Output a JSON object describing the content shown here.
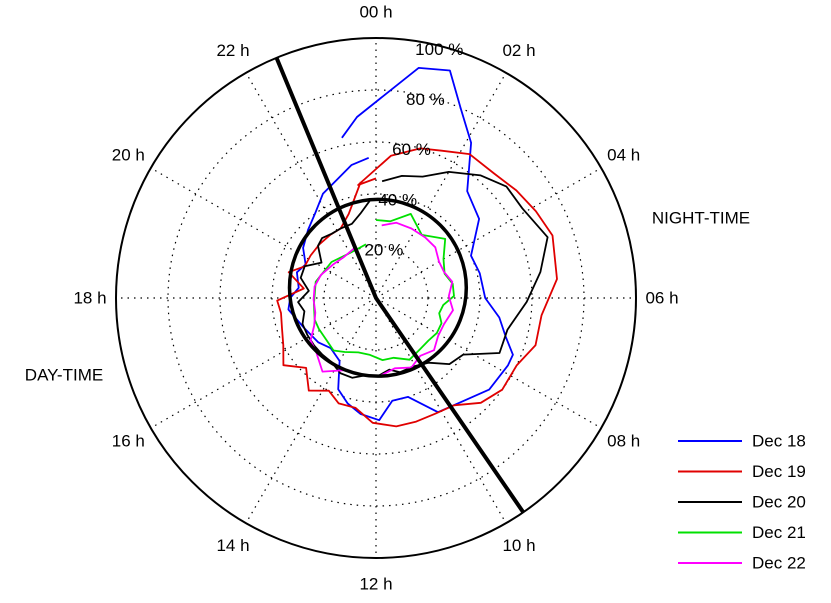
{
  "chart_data": {
    "type": "polar-line",
    "title": "",
    "theta_unit": "hour",
    "hour_labels": [
      "00 h",
      "02 h",
      "04 h",
      "06 h",
      "08 h",
      "10 h",
      "12 h",
      "14 h",
      "16 h",
      "18 h",
      "20 h",
      "22 h"
    ],
    "radial_labels": [
      "20 %",
      "40 %",
      "60 %",
      "80 %",
      "100 %"
    ],
    "rlim": [
      0,
      100
    ],
    "grid": true,
    "annotations": [
      {
        "name": "night",
        "text": "NIGHT-TIME"
      },
      {
        "name": "day",
        "text": "DAY-TIME"
      }
    ],
    "terminator_line": {
      "hours": [
        22.5,
        9.7
      ]
    },
    "mean_circle": {
      "value": 34,
      "hour_offset": 0.7,
      "center_value": 4
    },
    "legend_position": "bottom-right",
    "series": [
      {
        "name": "Dec 18",
        "color": "#0000ff",
        "r": [
          63,
          70,
          90,
          92,
          80,
          70,
          54,
          50,
          40,
          41,
          42,
          48,
          52,
          57,
          57,
          56,
          52,
          50,
          40,
          40,
          47,
          45,
          42,
          38,
          28,
          26,
          28,
          30,
          34,
          33,
          30,
          32,
          30,
          34,
          37,
          40,
          45,
          48,
          52,
          54
        ],
        "h": [
          -0.8,
          -0.4,
          0.7,
          1.2,
          1.6,
          2.1,
          2.7,
          3.5,
          4.4,
          5.1,
          6.0,
          6.6,
          7.1,
          7.5,
          7.8,
          8.6,
          9.3,
          10.1,
          10.8,
          11.4,
          11.9,
          12.5,
          13.0,
          13.5,
          14.0,
          14.8,
          15.5,
          16.5,
          17.5,
          18.0,
          18.5,
          19.2,
          19.7,
          20.3,
          21.0,
          21.6,
          22.2,
          22.8,
          23.3,
          23.8
        ]
      },
      {
        "name": "Dec 19",
        "color": "#e00000",
        "r": [
          46,
          44,
          55,
          60,
          62,
          66,
          66,
          68,
          70,
          72,
          70,
          64,
          64,
          60,
          60,
          57,
          51,
          50,
          50,
          50,
          48,
          43,
          43,
          40,
          44,
          38,
          44,
          40,
          38,
          37,
          38,
          28,
          35,
          30,
          30,
          30,
          30,
          30,
          34,
          45
        ],
        "h": [
          0.0,
          -0.6,
          0.4,
          1.1,
          1.6,
          2.2,
          2.9,
          3.5,
          4.1,
          4.7,
          5.6,
          6.4,
          7.1,
          7.7,
          8.4,
          9.0,
          9.6,
          10.2,
          10.8,
          11.4,
          12.1,
          12.7,
          13.3,
          13.8,
          14.4,
          15.0,
          15.6,
          16.2,
          16.8,
          17.4,
          17.9,
          18.5,
          19.1,
          19.6,
          20.2,
          20.9,
          21.6,
          22.2,
          22.8,
          23.5
        ]
      },
      {
        "name": "Dec 20",
        "color": "#000000",
        "r": [
          45,
          48,
          50,
          56,
          62,
          66,
          66,
          70,
          64,
          58,
          52,
          52,
          40,
          38,
          32,
          30,
          30,
          28,
          30,
          30,
          32,
          32,
          30,
          30,
          30,
          30,
          30,
          28,
          30,
          26,
          30,
          30,
          25,
          30,
          31,
          30,
          30,
          30,
          33,
          38
        ],
        "h": [
          0.2,
          0.8,
          1.4,
          2.0,
          2.7,
          3.3,
          3.9,
          4.7,
          5.4,
          6.1,
          6.9,
          7.6,
          8.2,
          8.8,
          9.4,
          10.1,
          10.8,
          11.3,
          11.9,
          12.5,
          13.1,
          13.7,
          14.3,
          14.9,
          15.5,
          16.1,
          16.7,
          17.3,
          17.8,
          18.4,
          19.0,
          19.6,
          20.2,
          20.8,
          21.2,
          21.7,
          22.2,
          22.8,
          23.3,
          23.8
        ]
      },
      {
        "name": "Dec 21",
        "color": "#00e000",
        "r": [
          30,
          30,
          35,
          30,
          35,
          30,
          28,
          30,
          30,
          26,
          25,
          27,
          27,
          26,
          26,
          27,
          24,
          24,
          22,
          22,
          24,
          26,
          25,
          25,
          25,
          24,
          24,
          22,
          20,
          21
        ],
        "h": [
          0.0,
          0.7,
          1.5,
          2.4,
          3.3,
          4.0,
          4.7,
          5.3,
          5.9,
          6.4,
          6.9,
          7.4,
          8.0,
          8.6,
          9.3,
          10.1,
          10.9,
          11.6,
          12.4,
          13.2,
          14.0,
          14.6,
          15.3,
          16.1,
          16.7,
          17.6,
          19.0,
          20.6,
          22.0,
          23.3
        ]
      },
      {
        "name": "Dec 22",
        "color": "#ff00ff",
        "r": [
          28,
          30,
          30,
          30,
          30,
          28,
          28,
          30,
          28,
          30,
          28,
          28,
          30,
          28,
          30,
          28,
          30,
          30,
          30,
          35,
          31,
          30,
          26,
          24,
          24,
          24,
          23,
          21,
          20,
          21
        ],
        "h": [
          0.3,
          1.0,
          1.8,
          2.6,
          3.3,
          4.0,
          4.6,
          5.2,
          5.9,
          6.6,
          7.4,
          8.1,
          8.8,
          9.5,
          10.2,
          11.0,
          11.8,
          12.6,
          13.5,
          14.4,
          15.2,
          15.8,
          16.4,
          17.1,
          17.9,
          18.7,
          19.5,
          20.5,
          21.5,
          22.5
        ]
      }
    ]
  }
}
